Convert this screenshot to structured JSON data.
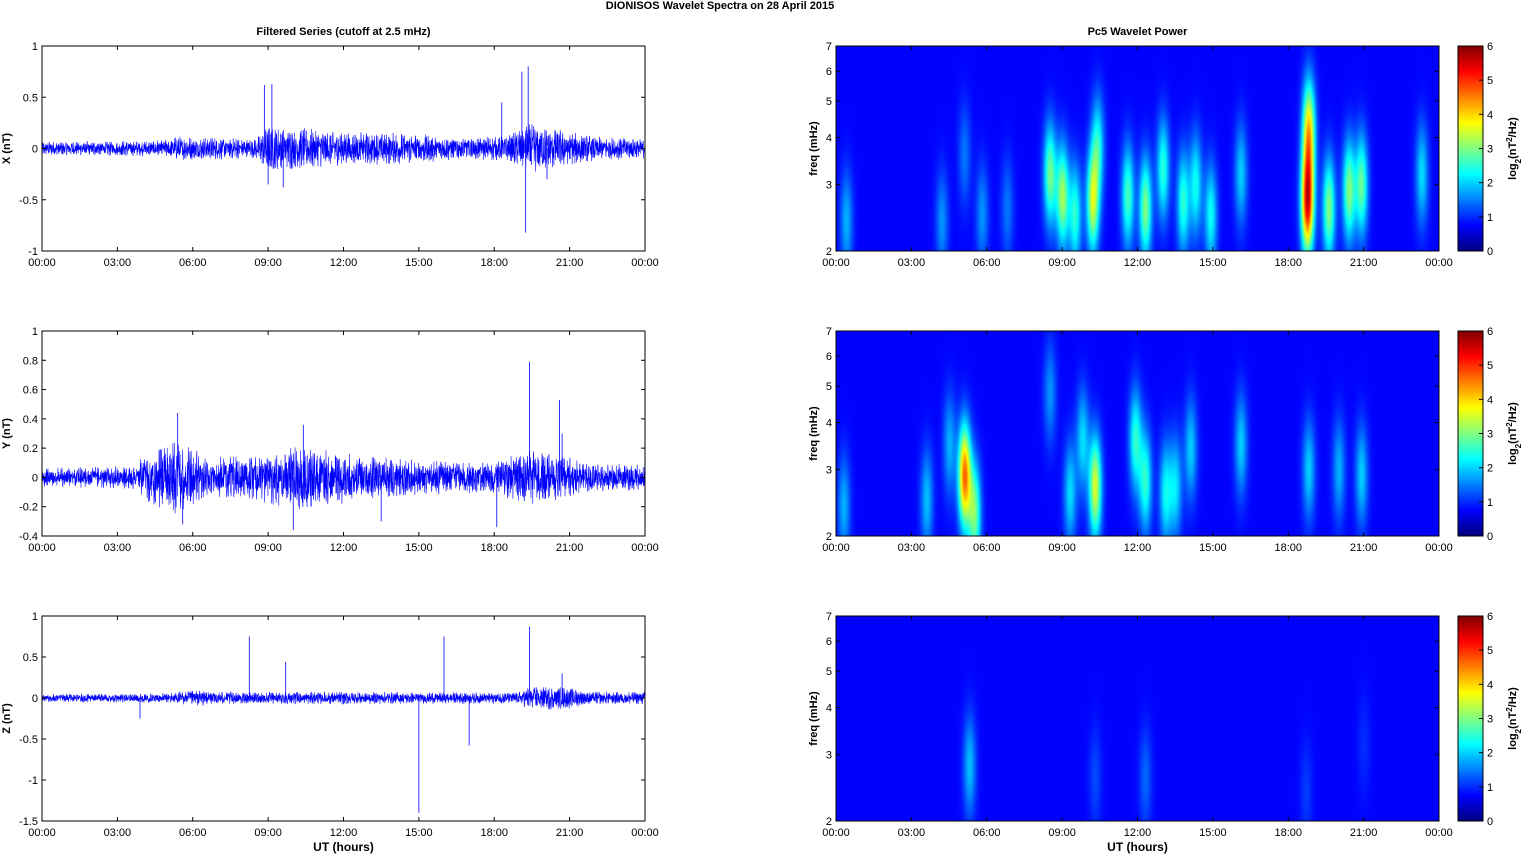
{
  "figure": {
    "title": "DIONISOS Wavelet Spectra on 28 April     2015"
  },
  "chart_data": [
    {
      "id": "ts-x",
      "type": "line",
      "title": "Filtered Series (cutoff at 2.5 mHz)",
      "xlabel": "",
      "ylabel": "X (nT)",
      "xlim": [
        0,
        24
      ],
      "ylim": [
        -1,
        1
      ],
      "xticks": [
        "00:00",
        "03:00",
        "06:00",
        "09:00",
        "12:00",
        "15:00",
        "18:00",
        "21:00",
        "00:00"
      ],
      "yticks": [
        "-1",
        "-0.5",
        "0",
        "0.5",
        "1"
      ],
      "series": [
        {
          "color": "#0000ff"
        }
      ],
      "noise_profile": [
        [
          0,
          0.07
        ],
        [
          4.5,
          0.08
        ],
        [
          5.5,
          0.12
        ],
        [
          8.5,
          0.1
        ],
        [
          9,
          0.22
        ],
        [
          10.5,
          0.2
        ],
        [
          12,
          0.17
        ],
        [
          15,
          0.15
        ],
        [
          16,
          0.12
        ],
        [
          18.5,
          0.12
        ],
        [
          19.3,
          0.25
        ],
        [
          20.5,
          0.2
        ],
        [
          22,
          0.12
        ],
        [
          24,
          0.1
        ]
      ],
      "spikes": [
        [
          8.85,
          0.62
        ],
        [
          9.15,
          0.63
        ],
        [
          9.0,
          -0.35
        ],
        [
          9.6,
          -0.38
        ],
        [
          19.1,
          0.75
        ],
        [
          19.25,
          -0.82
        ],
        [
          19.35,
          0.8
        ],
        [
          18.3,
          0.45
        ],
        [
          20.1,
          -0.3
        ]
      ]
    },
    {
      "id": "ts-y",
      "type": "line",
      "title": "",
      "xlabel": "",
      "ylabel": "Y (nT)",
      "xlim": [
        0,
        24
      ],
      "ylim": [
        -0.4,
        1
      ],
      "xticks": [
        "00:00",
        "03:00",
        "06:00",
        "09:00",
        "12:00",
        "15:00",
        "18:00",
        "21:00",
        "00:00"
      ],
      "yticks": [
        "-0.4",
        "-0.2",
        "0",
        "0.2",
        "0.4",
        "0.6",
        "0.8",
        "1"
      ],
      "series": [
        {
          "color": "#0000ff"
        }
      ],
      "noise_profile": [
        [
          0,
          0.07
        ],
        [
          3.5,
          0.08
        ],
        [
          4.5,
          0.2
        ],
        [
          5.5,
          0.28
        ],
        [
          6.5,
          0.14
        ],
        [
          8.5,
          0.16
        ],
        [
          9.5,
          0.2
        ],
        [
          10.5,
          0.25
        ],
        [
          11.5,
          0.2
        ],
        [
          13,
          0.15
        ],
        [
          15,
          0.12
        ],
        [
          18,
          0.11
        ],
        [
          19.3,
          0.2
        ],
        [
          20.5,
          0.16
        ],
        [
          22,
          0.1
        ],
        [
          24,
          0.09
        ]
      ],
      "spikes": [
        [
          5.4,
          0.44
        ],
        [
          5.6,
          -0.32
        ],
        [
          10.4,
          0.36
        ],
        [
          19.4,
          0.79
        ],
        [
          20.6,
          0.53
        ],
        [
          20.7,
          0.3
        ],
        [
          18.1,
          -0.34
        ],
        [
          13.5,
          -0.3
        ],
        [
          10.0,
          -0.36
        ]
      ]
    },
    {
      "id": "ts-z",
      "type": "line",
      "title": "",
      "xlabel": "UT (hours)",
      "ylabel": "Z (nT)",
      "xlim": [
        0,
        24
      ],
      "ylim": [
        -1.5,
        1
      ],
      "xticks": [
        "00:00",
        "03:00",
        "06:00",
        "09:00",
        "12:00",
        "15:00",
        "18:00",
        "21:00",
        "00:00"
      ],
      "yticks": [
        "-1.5",
        "-1",
        "-0.5",
        "0",
        "0.5",
        "1"
      ],
      "series": [
        {
          "color": "#0000ff"
        }
      ],
      "noise_profile": [
        [
          0,
          0.05
        ],
        [
          5,
          0.06
        ],
        [
          6,
          0.1
        ],
        [
          8,
          0.07
        ],
        [
          12,
          0.08
        ],
        [
          16,
          0.07
        ],
        [
          19,
          0.08
        ],
        [
          19.5,
          0.16
        ],
        [
          21,
          0.13
        ],
        [
          22,
          0.08
        ],
        [
          24,
          0.08
        ]
      ],
      "spikes": [
        [
          8.25,
          0.75
        ],
        [
          9.7,
          0.44
        ],
        [
          15.0,
          -1.4
        ],
        [
          16.0,
          0.75
        ],
        [
          17.0,
          -0.58
        ],
        [
          19.4,
          0.87
        ],
        [
          20.7,
          0.3
        ],
        [
          3.9,
          -0.25
        ]
      ]
    },
    {
      "id": "wv-x",
      "type": "heatmap",
      "title": "Pc5 Wavelet Power",
      "xlabel": "",
      "ylabel": "freq (mHz)",
      "xlim": [
        0,
        24
      ],
      "ylim": [
        2,
        7
      ],
      "yscale": "log",
      "xticks": [
        "00:00",
        "03:00",
        "06:00",
        "09:00",
        "12:00",
        "15:00",
        "18:00",
        "21:00",
        "00:00"
      ],
      "yticks": [
        "2",
        "3",
        "4",
        "5",
        "6",
        "7"
      ],
      "colorbar": {
        "label": "log2(nT^2/Hz)",
        "range": [
          0,
          6
        ],
        "ticks": [
          "0",
          "1",
          "2",
          "3",
          "4",
          "5",
          "6"
        ],
        "colormap": "jet"
      },
      "features": [
        {
          "t": 0.4,
          "f": 2.4,
          "amp": 1.2
        },
        {
          "t": 4.2,
          "f": 2.4,
          "amp": 1.0
        },
        {
          "t": 5.1,
          "f": 3.6,
          "amp": 0.8
        },
        {
          "t": 5.8,
          "f": 2.5,
          "amp": 1.0
        },
        {
          "t": 6.8,
          "f": 2.6,
          "amp": 0.8
        },
        {
          "t": 8.5,
          "f": 3.2,
          "amp": 2.5
        },
        {
          "t": 9.0,
          "f": 2.8,
          "amp": 2.8
        },
        {
          "t": 9.5,
          "f": 2.5,
          "amp": 2.0
        },
        {
          "t": 10.2,
          "f": 2.7,
          "amp": 3.0
        },
        {
          "t": 10.4,
          "f": 3.8,
          "amp": 1.8
        },
        {
          "t": 11.6,
          "f": 2.8,
          "amp": 2.2
        },
        {
          "t": 12.3,
          "f": 2.6,
          "amp": 2.6
        },
        {
          "t": 13.0,
          "f": 3.3,
          "amp": 2.0
        },
        {
          "t": 13.8,
          "f": 2.7,
          "amp": 2.0
        },
        {
          "t": 14.3,
          "f": 3.0,
          "amp": 1.8
        },
        {
          "t": 14.9,
          "f": 2.5,
          "amp": 1.8
        },
        {
          "t": 16.1,
          "f": 3.2,
          "amp": 1.4
        },
        {
          "t": 18.75,
          "f": 2.7,
          "amp": 5.2
        },
        {
          "t": 18.8,
          "f": 4.2,
          "amp": 3.5
        },
        {
          "t": 19.6,
          "f": 2.6,
          "amp": 2.6
        },
        {
          "t": 20.4,
          "f": 2.9,
          "amp": 2.6
        },
        {
          "t": 20.9,
          "f": 3.0,
          "amp": 2.4
        },
        {
          "t": 23.3,
          "f": 3.2,
          "amp": 1.5
        }
      ]
    },
    {
      "id": "wv-y",
      "type": "heatmap",
      "title": "",
      "xlabel": "",
      "ylabel": "freq (mHz)",
      "xlim": [
        0,
        24
      ],
      "ylim": [
        2,
        7
      ],
      "yscale": "log",
      "xticks": [
        "00:00",
        "03:00",
        "06:00",
        "09:00",
        "12:00",
        "15:00",
        "18:00",
        "21:00",
        "00:00"
      ],
      "yticks": [
        "2",
        "3",
        "4",
        "5",
        "6",
        "7"
      ],
      "colorbar": {
        "label": "log2(nT^2/Hz)",
        "range": [
          0,
          6
        ],
        "ticks": [
          "0",
          "1",
          "2",
          "3",
          "4",
          "5",
          "6"
        ],
        "colormap": "jet"
      },
      "features": [
        {
          "t": 0.3,
          "f": 2.4,
          "amp": 1.2
        },
        {
          "t": 3.6,
          "f": 2.5,
          "amp": 1.3
        },
        {
          "t": 4.5,
          "f": 3.5,
          "amp": 1.2
        },
        {
          "t": 5.1,
          "f": 2.9,
          "amp": 4.4
        },
        {
          "t": 5.5,
          "f": 2.3,
          "amp": 2.5
        },
        {
          "t": 8.5,
          "f": 4.8,
          "amp": 1.0
        },
        {
          "t": 9.3,
          "f": 2.6,
          "amp": 1.5
        },
        {
          "t": 9.8,
          "f": 3.6,
          "amp": 1.5
        },
        {
          "t": 10.3,
          "f": 2.7,
          "amp": 3.2
        },
        {
          "t": 11.9,
          "f": 3.6,
          "amp": 2.0
        },
        {
          "t": 12.3,
          "f": 2.8,
          "amp": 2.0
        },
        {
          "t": 13.1,
          "f": 2.6,
          "amp": 1.7
        },
        {
          "t": 13.5,
          "f": 2.7,
          "amp": 1.5
        },
        {
          "t": 14.1,
          "f": 3.4,
          "amp": 1.4
        },
        {
          "t": 16.1,
          "f": 3.5,
          "amp": 1.4
        },
        {
          "t": 18.8,
          "f": 3.0,
          "amp": 1.4
        },
        {
          "t": 20.0,
          "f": 3.0,
          "amp": 1.2
        },
        {
          "t": 20.9,
          "f": 2.9,
          "amp": 1.4
        }
      ]
    },
    {
      "id": "wv-z",
      "type": "heatmap",
      "title": "",
      "xlabel": "UT (hours)",
      "ylabel": "freq (mHz)",
      "xlim": [
        0,
        24
      ],
      "ylim": [
        2,
        7
      ],
      "yscale": "log",
      "xticks": [
        "00:00",
        "03:00",
        "06:00",
        "09:00",
        "12:00",
        "15:00",
        "18:00",
        "21:00",
        "00:00"
      ],
      "yticks": [
        "2",
        "3",
        "4",
        "5",
        "6",
        "7"
      ],
      "colorbar": {
        "label": "log2(nT^2/Hz)",
        "range": [
          0,
          6
        ],
        "ticks": [
          "0",
          "1",
          "2",
          "3",
          "4",
          "5",
          "6"
        ],
        "colormap": "jet"
      },
      "features": [
        {
          "t": 5.3,
          "f": 2.8,
          "amp": 1.3
        },
        {
          "t": 10.3,
          "f": 2.6,
          "amp": 0.5
        },
        {
          "t": 12.3,
          "f": 2.6,
          "amp": 0.7
        },
        {
          "t": 18.7,
          "f": 2.4,
          "amp": 0.4
        },
        {
          "t": 21.0,
          "f": 3.2,
          "amp": 0.3
        }
      ]
    }
  ]
}
